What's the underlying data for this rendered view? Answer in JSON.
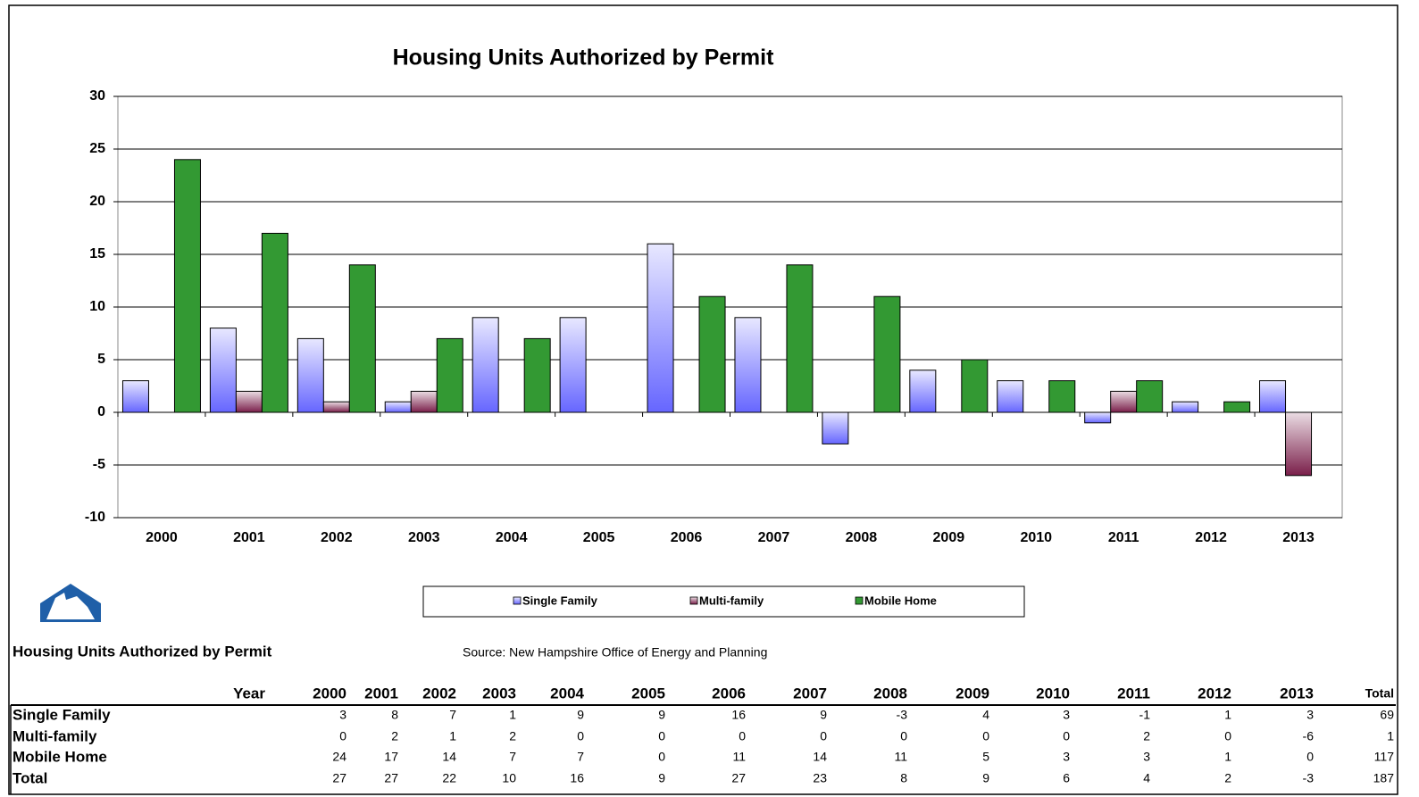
{
  "chart_data": {
    "type": "bar",
    "title": "Housing Units Authorized by Permit",
    "categories": [
      "2000",
      "2001",
      "2002",
      "2003",
      "2004",
      "2005",
      "2006",
      "2007",
      "2008",
      "2009",
      "2010",
      "2011",
      "2012",
      "2013"
    ],
    "series": [
      {
        "name": "Single Family",
        "color": "#6666ff",
        "values": [
          3,
          8,
          7,
          1,
          9,
          9,
          16,
          9,
          -3,
          4,
          3,
          -1,
          1,
          3
        ]
      },
      {
        "name": "Multi-family",
        "color": "#7a1f4a",
        "values": [
          0,
          2,
          1,
          2,
          0,
          0,
          0,
          0,
          0,
          0,
          0,
          2,
          0,
          -6
        ]
      },
      {
        "name": "Mobile Home",
        "color": "#339933",
        "values": [
          24,
          17,
          14,
          7,
          7,
          0,
          11,
          14,
          11,
          5,
          3,
          3,
          1,
          0
        ]
      }
    ],
    "ylim": [
      -10,
      30
    ],
    "yticks": [
      -10,
      -5,
      0,
      5,
      10,
      15,
      20,
      25,
      30
    ],
    "grid": true,
    "legend": "bottom"
  },
  "table": {
    "title": "Housing Units Authorized by Permit",
    "source": "Source: New Hampshire Office of Energy and Planning",
    "header": [
      "Year",
      "2000",
      "2001",
      "2002",
      "2003",
      "2004",
      "2005",
      "2006",
      "2007",
      "2008",
      "2009",
      "2010",
      "2011",
      "2012",
      "2013",
      "Total"
    ],
    "rows": [
      {
        "label": "Single Family",
        "values": [
          3,
          8,
          7,
          1,
          9,
          9,
          16,
          9,
          -3,
          4,
          3,
          -1,
          1,
          3,
          69
        ]
      },
      {
        "label": "Multi-family",
        "values": [
          0,
          2,
          1,
          2,
          0,
          0,
          0,
          0,
          0,
          0,
          0,
          2,
          0,
          -6,
          1
        ]
      },
      {
        "label": "Mobile Home",
        "values": [
          24,
          17,
          14,
          7,
          7,
          0,
          11,
          14,
          11,
          5,
          3,
          3,
          1,
          0,
          117
        ]
      },
      {
        "label": "Total",
        "values": [
          27,
          27,
          22,
          10,
          16,
          9,
          27,
          23,
          8,
          9,
          6,
          4,
          2,
          -3,
          187
        ]
      }
    ]
  }
}
